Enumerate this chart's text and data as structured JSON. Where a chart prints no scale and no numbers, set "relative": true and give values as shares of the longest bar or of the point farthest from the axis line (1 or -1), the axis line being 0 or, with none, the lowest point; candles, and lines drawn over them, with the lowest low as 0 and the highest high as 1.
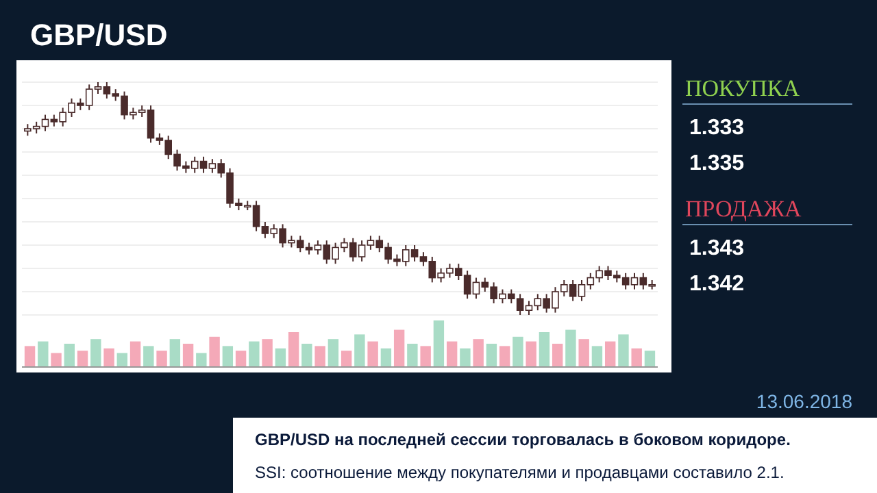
{
  "chart_data": [
    {
      "type": "candlestick",
      "title": "GBP/USD",
      "relative": true,
      "color": "#4a2b2b",
      "grid": true,
      "categories": [
        null,
        null,
        null,
        null,
        null,
        null,
        null,
        null,
        null,
        null,
        null,
        null,
        null,
        null,
        null,
        null,
        null,
        null,
        null,
        null,
        null,
        null,
        null,
        null,
        null,
        null,
        null,
        null,
        null,
        null,
        null,
        null,
        null,
        null,
        null,
        null,
        null,
        null,
        null,
        null,
        null,
        null,
        null,
        null,
        null,
        null,
        null,
        null,
        null,
        null,
        null,
        null,
        null,
        null,
        null,
        null,
        null,
        null,
        null,
        null,
        null,
        null,
        null,
        null,
        null,
        null,
        null,
        null,
        null,
        null,
        null,
        null
      ],
      "ohlc": [
        [
          0.79,
          0.82,
          0.77,
          0.8
        ],
        [
          0.8,
          0.83,
          0.78,
          0.81
        ],
        [
          0.81,
          0.86,
          0.79,
          0.84
        ],
        [
          0.84,
          0.86,
          0.81,
          0.83
        ],
        [
          0.83,
          0.89,
          0.81,
          0.87
        ],
        [
          0.87,
          0.93,
          0.85,
          0.91
        ],
        [
          0.91,
          0.93,
          0.88,
          0.9
        ],
        [
          0.9,
          0.99,
          0.88,
          0.97
        ],
        [
          0.97,
          1.0,
          0.95,
          0.98
        ],
        [
          0.98,
          1.0,
          0.93,
          0.95
        ],
        [
          0.95,
          0.97,
          0.92,
          0.94
        ],
        [
          0.94,
          0.96,
          0.84,
          0.86
        ],
        [
          0.86,
          0.89,
          0.84,
          0.87
        ],
        [
          0.87,
          0.9,
          0.85,
          0.88
        ],
        [
          0.88,
          0.9,
          0.74,
          0.76
        ],
        [
          0.76,
          0.78,
          0.73,
          0.75
        ],
        [
          0.75,
          0.77,
          0.67,
          0.69
        ],
        [
          0.69,
          0.71,
          0.62,
          0.64
        ],
        [
          0.64,
          0.66,
          0.61,
          0.63
        ],
        [
          0.63,
          0.68,
          0.61,
          0.66
        ],
        [
          0.66,
          0.68,
          0.61,
          0.63
        ],
        [
          0.63,
          0.67,
          0.61,
          0.65
        ],
        [
          0.65,
          0.67,
          0.59,
          0.61
        ],
        [
          0.61,
          0.63,
          0.46,
          0.48
        ],
        [
          0.48,
          0.5,
          0.45,
          0.47
        ],
        [
          0.47,
          0.49,
          0.45,
          0.47
        ],
        [
          0.47,
          0.49,
          0.36,
          0.38
        ],
        [
          0.38,
          0.4,
          0.33,
          0.35
        ],
        [
          0.35,
          0.39,
          0.33,
          0.37
        ],
        [
          0.37,
          0.39,
          0.29,
          0.31
        ],
        [
          0.31,
          0.34,
          0.29,
          0.32
        ],
        [
          0.32,
          0.34,
          0.27,
          0.29
        ],
        [
          0.29,
          0.31,
          0.26,
          0.28
        ],
        [
          0.28,
          0.32,
          0.26,
          0.3
        ],
        [
          0.3,
          0.32,
          0.22,
          0.24
        ],
        [
          0.24,
          0.31,
          0.22,
          0.29
        ],
        [
          0.29,
          0.33,
          0.27,
          0.31
        ],
        [
          0.31,
          0.33,
          0.23,
          0.25
        ],
        [
          0.25,
          0.32,
          0.23,
          0.3
        ],
        [
          0.3,
          0.34,
          0.28,
          0.32
        ],
        [
          0.32,
          0.34,
          0.27,
          0.29
        ],
        [
          0.29,
          0.31,
          0.22,
          0.24
        ],
        [
          0.24,
          0.26,
          0.21,
          0.23
        ],
        [
          0.23,
          0.3,
          0.21,
          0.28
        ],
        [
          0.28,
          0.3,
          0.23,
          0.25
        ],
        [
          0.25,
          0.27,
          0.21,
          0.23
        ],
        [
          0.23,
          0.25,
          0.14,
          0.16
        ],
        [
          0.16,
          0.2,
          0.14,
          0.18
        ],
        [
          0.18,
          0.22,
          0.16,
          0.2
        ],
        [
          0.2,
          0.22,
          0.15,
          0.17
        ],
        [
          0.17,
          0.19,
          0.07,
          0.09
        ],
        [
          0.09,
          0.16,
          0.07,
          0.14
        ],
        [
          0.14,
          0.16,
          0.1,
          0.12
        ],
        [
          0.12,
          0.14,
          0.05,
          0.07
        ],
        [
          0.07,
          0.11,
          0.05,
          0.09
        ],
        [
          0.09,
          0.11,
          0.05,
          0.07
        ],
        [
          0.07,
          0.09,
          0.0,
          0.02
        ],
        [
          0.02,
          0.06,
          0.0,
          0.04
        ],
        [
          0.04,
          0.09,
          0.02,
          0.07
        ],
        [
          0.07,
          0.09,
          0.01,
          0.03
        ],
        [
          0.03,
          0.12,
          0.01,
          0.1
        ],
        [
          0.1,
          0.15,
          0.08,
          0.13
        ],
        [
          0.13,
          0.15,
          0.06,
          0.08
        ],
        [
          0.08,
          0.15,
          0.06,
          0.13
        ],
        [
          0.13,
          0.18,
          0.11,
          0.16
        ],
        [
          0.16,
          0.21,
          0.14,
          0.19
        ],
        [
          0.19,
          0.21,
          0.15,
          0.17
        ],
        [
          0.17,
          0.19,
          0.14,
          0.16
        ],
        [
          0.16,
          0.18,
          0.11,
          0.13
        ],
        [
          0.13,
          0.18,
          0.11,
          0.16
        ],
        [
          0.16,
          0.18,
          0.11,
          0.13
        ],
        [
          0.13,
          0.15,
          0.11,
          0.13
        ]
      ],
      "annotations": [
        "13.06.2018",
        "GBP/USD на последней сессии торговалась в боковом коридоре.",
        "SSI: соотношение между покупателями и продавцами составило 2.1."
      ]
    },
    {
      "type": "bar",
      "relative": true,
      "categories": [
        null,
        null,
        null,
        null,
        null,
        null,
        null,
        null,
        null,
        null,
        null,
        null,
        null,
        null,
        null,
        null,
        null,
        null,
        null,
        null,
        null,
        null,
        null,
        null,
        null,
        null,
        null,
        null,
        null,
        null,
        null,
        null,
        null,
        null,
        null,
        null,
        null,
        null,
        null,
        null,
        null,
        null,
        null,
        null,
        null,
        null,
        null,
        null
      ],
      "values": [
        0.45,
        0.55,
        0.3,
        0.5,
        0.35,
        0.6,
        0.4,
        0.3,
        0.55,
        0.45,
        0.35,
        0.6,
        0.5,
        0.3,
        0.65,
        0.45,
        0.35,
        0.55,
        0.6,
        0.4,
        0.75,
        0.5,
        0.45,
        0.6,
        0.35,
        0.7,
        0.55,
        0.4,
        0.8,
        0.5,
        0.45,
        1.0,
        0.55,
        0.4,
        0.6,
        0.5,
        0.45,
        0.65,
        0.55,
        0.75,
        0.5,
        0.8,
        0.6,
        0.45,
        0.55,
        0.7,
        0.4,
        0.35
      ],
      "colors": [
        "#f4a9b8",
        "#a9dcc6",
        "#f4a9b8",
        "#a9dcc6",
        "#f4a9b8",
        "#a9dcc6",
        "#f4a9b8",
        "#a9dcc6",
        "#f4a9b8",
        "#a9dcc6",
        "#f4a9b8",
        "#a9dcc6",
        "#f4a9b8",
        "#a9dcc6",
        "#f4a9b8",
        "#a9dcc6",
        "#f4a9b8",
        "#a9dcc6",
        "#f4a9b8",
        "#a9dcc6",
        "#f4a9b8",
        "#a9dcc6",
        "#f4a9b8",
        "#a9dcc6",
        "#f4a9b8",
        "#a9dcc6",
        "#f4a9b8",
        "#a9dcc6",
        "#f4a9b8",
        "#a9dcc6",
        "#f4a9b8",
        "#a9dcc6",
        "#f4a9b8",
        "#a9dcc6",
        "#f4a9b8",
        "#a9dcc6",
        "#f4a9b8",
        "#a9dcc6",
        "#f4a9b8",
        "#a9dcc6",
        "#f4a9b8",
        "#a9dcc6",
        "#f4a9b8",
        "#a9dcc6",
        "#f4a9b8",
        "#a9dcc6",
        "#f4a9b8",
        "#a9dcc6"
      ]
    },
    {
      "type": "other",
      "title": "ПОКУПКА",
      "annotations": [
        "1.333",
        "1.335"
      ]
    },
    {
      "type": "other",
      "title": "ПРОДАЖА",
      "annotations": [
        "1.343",
        "1.342"
      ]
    }
  ]
}
